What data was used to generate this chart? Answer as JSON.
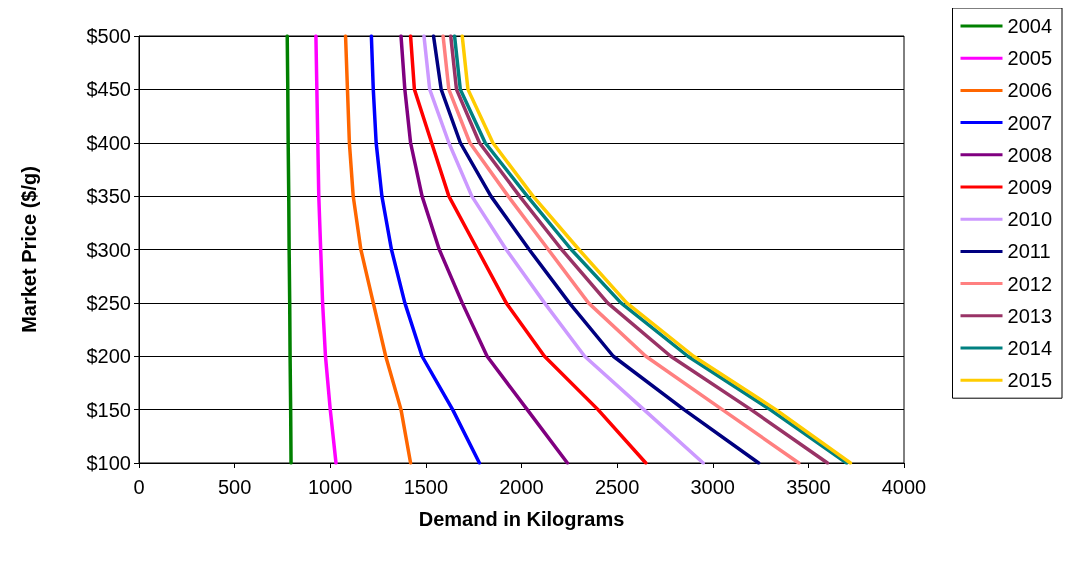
{
  "chart_data": {
    "type": "line",
    "xlabel": "Demand in Kilograms",
    "ylabel": "Market Price ($/g)",
    "xlim": [
      0,
      4000
    ],
    "xticks": [
      0,
      500,
      1000,
      1500,
      2000,
      2500,
      3000,
      3500,
      4000
    ],
    "ylim": [
      100,
      500
    ],
    "yticks": [
      {
        "value": 100,
        "label": "$100"
      },
      {
        "value": 150,
        "label": "$150"
      },
      {
        "value": 200,
        "label": "$200"
      },
      {
        "value": 250,
        "label": "$250"
      },
      {
        "value": 300,
        "label": "$300"
      },
      {
        "value": 350,
        "label": "$350"
      },
      {
        "value": 400,
        "label": "$400"
      },
      {
        "value": 450,
        "label": "$450"
      },
      {
        "value": 500,
        "label": "$500"
      }
    ],
    "grid": "y",
    "legend": "right",
    "marker": "none",
    "line_style": "solid",
    "series": [
      {
        "name": "2004",
        "color": "#008000",
        "x": [
          795,
          793,
          790,
          788,
          785,
          783,
          780,
          778,
          775
        ],
        "values": [
          100,
          150,
          200,
          250,
          300,
          350,
          400,
          450,
          500
        ]
      },
      {
        "name": "2005",
        "color": "#ff00ff",
        "x": [
          1030,
          1000,
          975,
          960,
          950,
          940,
          935,
          930,
          925
        ],
        "values": [
          100,
          150,
          200,
          250,
          300,
          350,
          400,
          450,
          500
        ]
      },
      {
        "name": "2006",
        "color": "#ff6600",
        "x": [
          1420,
          1370,
          1290,
          1225,
          1160,
          1120,
          1100,
          1090,
          1080
        ],
        "values": [
          100,
          150,
          200,
          250,
          300,
          350,
          400,
          450,
          500
        ]
      },
      {
        "name": "2007",
        "color": "#0000ff",
        "x": [
          1780,
          1640,
          1480,
          1390,
          1320,
          1270,
          1240,
          1225,
          1215
        ],
        "values": [
          100,
          150,
          200,
          250,
          300,
          350,
          400,
          450,
          500
        ]
      },
      {
        "name": "2008",
        "color": "#800080",
        "x": [
          2240,
          2030,
          1820,
          1690,
          1570,
          1480,
          1420,
          1390,
          1370
        ],
        "values": [
          100,
          150,
          200,
          250,
          300,
          350,
          400,
          450,
          500
        ]
      },
      {
        "name": "2009",
        "color": "#ff0000",
        "x": [
          2650,
          2400,
          2120,
          1920,
          1770,
          1620,
          1530,
          1440,
          1420
        ],
        "values": [
          100,
          150,
          200,
          250,
          300,
          350,
          400,
          450,
          500
        ]
      },
      {
        "name": "2010",
        "color": "#cc99ff",
        "x": [
          2950,
          2640,
          2330,
          2120,
          1920,
          1740,
          1620,
          1520,
          1490
        ],
        "values": [
          100,
          150,
          200,
          250,
          300,
          350,
          400,
          450,
          500
        ]
      },
      {
        "name": "2011",
        "color": "#000080",
        "x": [
          3240,
          2850,
          2480,
          2250,
          2040,
          1840,
          1680,
          1580,
          1540
        ],
        "values": [
          100,
          150,
          200,
          250,
          300,
          350,
          400,
          450,
          500
        ]
      },
      {
        "name": "2012",
        "color": "#ff8080",
        "x": [
          3450,
          3050,
          2650,
          2350,
          2140,
          1930,
          1730,
          1620,
          1590
        ],
        "values": [
          100,
          150,
          200,
          250,
          300,
          350,
          400,
          450,
          500
        ]
      },
      {
        "name": "2013",
        "color": "#993366",
        "x": [
          3600,
          3200,
          2780,
          2450,
          2210,
          1990,
          1780,
          1660,
          1630
        ],
        "values": [
          100,
          150,
          200,
          250,
          300,
          350,
          400,
          450,
          500
        ]
      },
      {
        "name": "2014",
        "color": "#008080",
        "x": [
          3700,
          3300,
          2870,
          2520,
          2260,
          2030,
          1810,
          1680,
          1650
        ],
        "values": [
          100,
          150,
          200,
          250,
          300,
          350,
          400,
          450,
          500
        ]
      },
      {
        "name": "2015",
        "color": "#ffcc00",
        "x": [
          3720,
          3330,
          2900,
          2550,
          2300,
          2060,
          1850,
          1720,
          1690
        ],
        "values": [
          100,
          150,
          200,
          250,
          300,
          350,
          400,
          450,
          500
        ]
      }
    ]
  }
}
